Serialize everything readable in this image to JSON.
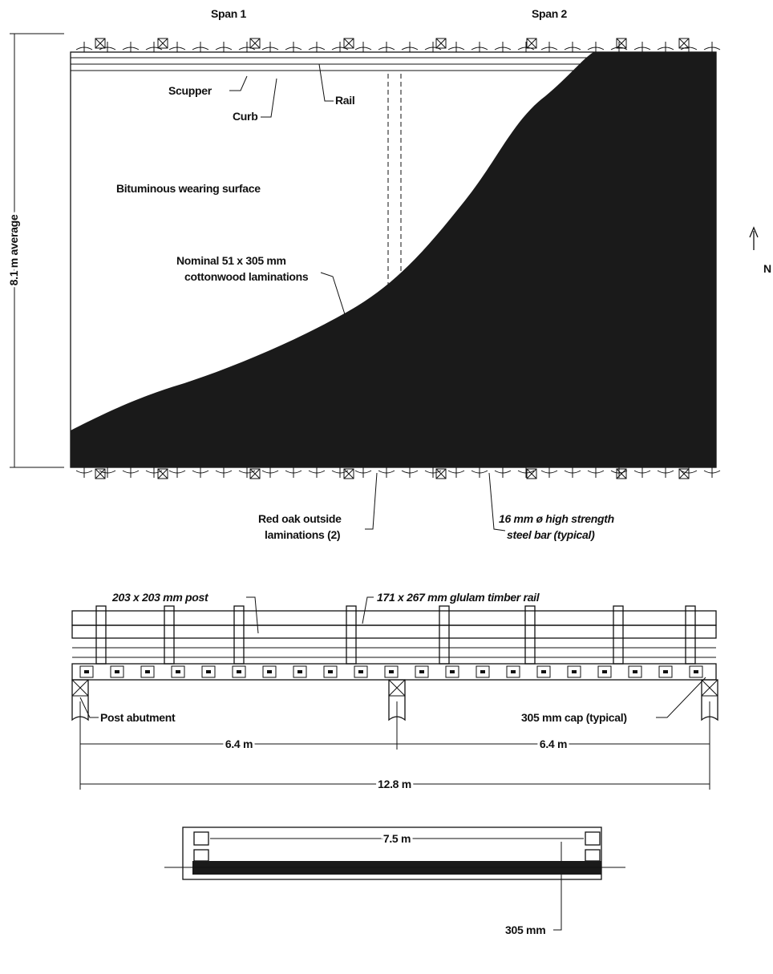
{
  "plan_view": {
    "span_labels": [
      "Span 1",
      "Span 2"
    ],
    "scupper": "Scupper",
    "curb": "Curb",
    "rail": "Rail",
    "surface": "Bituminous wearing surface",
    "width_dimension": "8.1 m average",
    "laminations": [
      "Nominal 51 x 305 mm",
      "cottonwood laminations"
    ],
    "red_oak": [
      "Red oak outside",
      "laminations (2)"
    ],
    "steel_bar": [
      "16 mm ø high strength",
      "steel bar (typical)"
    ],
    "north": "N"
  },
  "elevation_view": {
    "post": "203 x 203 mm post",
    "rail": "171 x 267 mm glulam timber rail",
    "abutment": "Post abutment",
    "cap": "305 mm cap (typical)",
    "spans": [
      "6.4 m",
      "6.4 m"
    ],
    "total": "12.8 m"
  },
  "section_view": {
    "width": "7.5 m",
    "depth": "305 mm"
  }
}
